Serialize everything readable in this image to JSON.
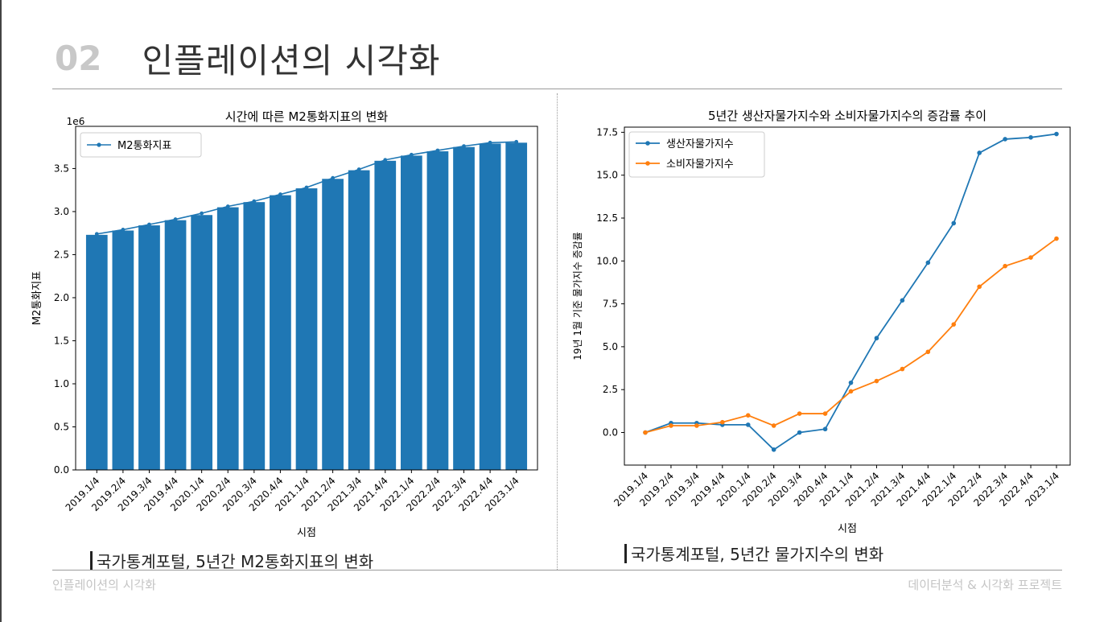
{
  "header": {
    "number": "02",
    "title": "인플레이션의 시각화"
  },
  "footer": {
    "left": "인플레이션의 시각화",
    "right": "데이터분석 & 시각화 프로젝트"
  },
  "captions": {
    "left": "국가통계포털, 5년간 M2통화지표의 변화",
    "right": "국가통계포털, 5년간 물가지수의 변화"
  },
  "chart_data": [
    {
      "type": "bar",
      "title": "시간에 따른 M2통화지표의 변화",
      "xlabel": "시점",
      "ylabel": "M2통화지표",
      "offset_label": "1e6",
      "categories": [
        "2019.1/4",
        "2019.2/4",
        "2019.3/4",
        "2019.4/4",
        "2020.1/4",
        "2020.2/4",
        "2020.3/4",
        "2020.4/4",
        "2021.1/4",
        "2021.2/4",
        "2021.3/4",
        "2021.4/4",
        "2022.1/4",
        "2022.2/4",
        "2022.3/4",
        "2022.4/4",
        "2023.1/4"
      ],
      "values": [
        2.73,
        2.78,
        2.84,
        2.9,
        2.96,
        3.05,
        3.11,
        3.19,
        3.27,
        3.38,
        3.48,
        3.59,
        3.65,
        3.7,
        3.75,
        3.79,
        3.8
      ],
      "line_values": [
        2.74,
        2.79,
        2.85,
        2.91,
        2.98,
        3.06,
        3.12,
        3.2,
        3.28,
        3.39,
        3.49,
        3.6,
        3.66,
        3.71,
        3.76,
        3.8,
        3.81
      ],
      "series_name": "M2통화지표",
      "yticks": [
        "0.0",
        "0.5",
        "1.0",
        "1.5",
        "2.0",
        "2.5",
        "3.0",
        "3.5"
      ],
      "ylim": [
        0,
        3.99
      ],
      "legend": "top-left",
      "colors": {
        "bar": "#1f77b4",
        "line": "#1f77b4"
      }
    },
    {
      "type": "line",
      "title": "5년간 생산자물가지수와 소비자물가지수의 증감률 추이",
      "xlabel": "시점",
      "ylabel": "19년 1월 기준 물가지수 증감률",
      "categories": [
        "2019.1/4",
        "2019.2/4",
        "2019.3/4",
        "2019.4/4",
        "2020.1/4",
        "2020.2/4",
        "2020.3/4",
        "2020.4/4",
        "2021.1/4",
        "2021.2/4",
        "2021.3/4",
        "2021.4/4",
        "2022.1/4",
        "2022.2/4",
        "2022.3/4",
        "2022.4/4",
        "2023.1/4"
      ],
      "series": [
        {
          "name": "생산자물가지수",
          "color": "#1f77b4",
          "values": [
            0.0,
            0.55,
            0.55,
            0.45,
            0.45,
            -1.0,
            0.0,
            0.2,
            2.9,
            5.5,
            7.7,
            9.9,
            12.2,
            16.3,
            17.1,
            17.2,
            17.4
          ]
        },
        {
          "name": "소비자물가지수",
          "color": "#ff7f0e",
          "values": [
            0.0,
            0.4,
            0.4,
            0.6,
            1.0,
            0.4,
            1.1,
            1.1,
            2.4,
            3.0,
            3.7,
            4.7,
            6.3,
            8.5,
            9.7,
            10.2,
            11.3
          ]
        }
      ],
      "yticks": [
        "0.0",
        "2.5",
        "5.0",
        "7.5",
        "10.0",
        "12.5",
        "15.0",
        "17.5"
      ],
      "ylim": [
        -1.9,
        17.8
      ],
      "legend": "top-left"
    }
  ]
}
